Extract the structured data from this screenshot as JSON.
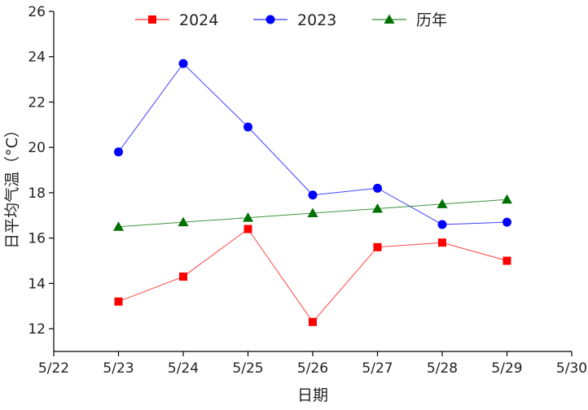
{
  "chart_data": {
    "type": "line",
    "xlabel": "日期",
    "ylabel": "日平均气温（°C）",
    "x_ticks": [
      "5/22",
      "5/23",
      "5/24",
      "5/25",
      "5/26",
      "5/27",
      "5/28",
      "5/29",
      "5/30"
    ],
    "xlim": [
      "5/22",
      "5/30"
    ],
    "ylim": [
      11,
      26
    ],
    "y_ticks": [
      12,
      14,
      16,
      18,
      20,
      22,
      24,
      26
    ],
    "grid": false,
    "legend_position": "top",
    "series": [
      {
        "name": "2024",
        "marker": "square",
        "color": "#ff0000",
        "x": [
          "5/23",
          "5/24",
          "5/25",
          "5/26",
          "5/27",
          "5/28",
          "5/29"
        ],
        "values": [
          13.2,
          14.3,
          16.4,
          12.3,
          15.6,
          15.8,
          15.0
        ]
      },
      {
        "name": "2023",
        "marker": "circle",
        "color": "#0000ff",
        "x": [
          "5/23",
          "5/24",
          "5/25",
          "5/26",
          "5/27",
          "5/28",
          "5/29"
        ],
        "values": [
          19.8,
          23.7,
          20.9,
          17.9,
          18.2,
          16.6,
          16.7
        ]
      },
      {
        "name": "历年",
        "marker": "triangle",
        "color": "#007000",
        "x": [
          "5/23",
          "5/24",
          "5/25",
          "5/26",
          "5/27",
          "5/28",
          "5/29"
        ],
        "values": [
          16.5,
          16.7,
          16.9,
          17.1,
          17.3,
          17.5,
          17.7
        ]
      }
    ]
  }
}
